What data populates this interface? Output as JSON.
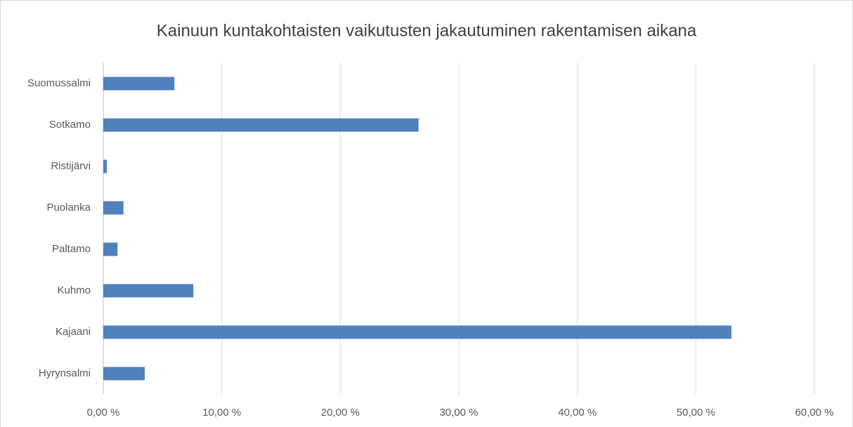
{
  "chart_data": {
    "type": "hbar",
    "title": "Kainuun kuntakohtaisten vaikutusten jakautuminen rakentamisen aikana",
    "categories": [
      "Hyrynsalmi",
      "Kajaani",
      "Kuhmo",
      "Paltamo",
      "Puolanka",
      "Ristijärvi",
      "Sotkamo",
      "Suomussalmi"
    ],
    "values": [
      3.5,
      53.0,
      7.6,
      1.2,
      1.7,
      0.3,
      26.6,
      6.0
    ],
    "color": "#4f81bd",
    "xlim": [
      0,
      60
    ],
    "xticks": [
      {
        "value": 0,
        "label": "0,00 %"
      },
      {
        "value": 10,
        "label": "10,00 %"
      },
      {
        "value": 20,
        "label": "20,00 %"
      },
      {
        "value": 30,
        "label": "30,00 %"
      },
      {
        "value": 40,
        "label": "40,00 %"
      },
      {
        "value": 50,
        "label": "50,00 %"
      },
      {
        "value": 60,
        "label": "60,00 %"
      }
    ],
    "grid": true
  }
}
